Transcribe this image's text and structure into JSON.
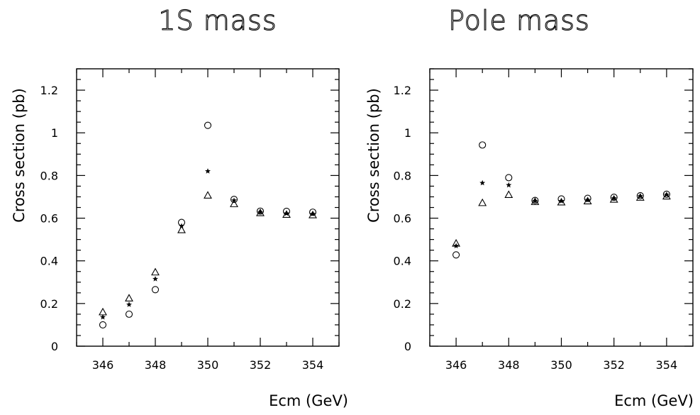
{
  "chart_data": [
    {
      "type": "scatter",
      "title": "1S mass",
      "xlabel": "Ecm (GeV)",
      "ylabel": "Cross section (pb)",
      "xlim": [
        345,
        355
      ],
      "ylim": [
        0,
        1.3
      ],
      "xticks": [
        346,
        348,
        350,
        352,
        354
      ],
      "xtick_labels": [
        "346",
        "348",
        "350",
        "352",
        "354"
      ],
      "yticks": [
        0,
        0.2,
        0.4,
        0.6,
        0.8,
        1,
        1.2
      ],
      "ytick_labels": [
        "0",
        "0.2",
        "0.4",
        "0.6",
        "0.8",
        "1",
        "1.2"
      ],
      "grid": false,
      "x": [
        346,
        347,
        348,
        349,
        350,
        351,
        352,
        353,
        354
      ],
      "series": [
        {
          "marker": "circle",
          "values": [
            0.1,
            0.15,
            0.265,
            0.58,
            1.035,
            0.688,
            0.633,
            0.632,
            0.628
          ]
        },
        {
          "marker": "star",
          "values": [
            0.136,
            0.195,
            0.315,
            0.563,
            0.82,
            0.683,
            0.628,
            0.622,
            0.62
          ]
        },
        {
          "marker": "triangle",
          "values": [
            0.16,
            0.225,
            0.347,
            0.545,
            0.707,
            0.667,
            0.625,
            0.617,
            0.615
          ]
        }
      ]
    },
    {
      "type": "scatter",
      "title": "Pole mass",
      "xlabel": "Ecm (GeV)",
      "ylabel": "Cross section (pb)",
      "xlim": [
        345,
        355
      ],
      "ylim": [
        0,
        1.3
      ],
      "xticks": [
        346,
        348,
        350,
        352,
        354
      ],
      "xtick_labels": [
        "346",
        "348",
        "350",
        "352",
        "354"
      ],
      "yticks": [
        0,
        0.2,
        0.4,
        0.6,
        0.8,
        1,
        1.2
      ],
      "ytick_labels": [
        "0",
        "0.2",
        "0.4",
        "0.6",
        "0.8",
        "1",
        "1.2"
      ],
      "grid": false,
      "x": [
        346,
        347,
        348,
        349,
        350,
        351,
        352,
        353,
        354
      ],
      "series": [
        {
          "marker": "circle",
          "values": [
            0.428,
            0.943,
            0.79,
            0.683,
            0.69,
            0.693,
            0.698,
            0.705,
            0.712
          ]
        },
        {
          "marker": "star",
          "values": [
            0.47,
            0.765,
            0.755,
            0.68,
            0.68,
            0.685,
            0.693,
            0.703,
            0.71
          ]
        },
        {
          "marker": "triangle",
          "values": [
            0.482,
            0.672,
            0.71,
            0.677,
            0.675,
            0.68,
            0.688,
            0.697,
            0.703
          ]
        }
      ]
    }
  ]
}
